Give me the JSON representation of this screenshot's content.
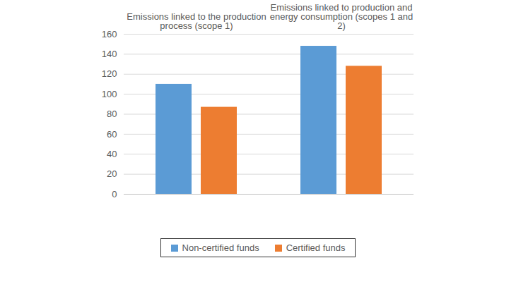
{
  "chart_data": {
    "type": "bar",
    "categories": [
      "Emissions linked to the production process (scope 1)",
      "Emissions linked to production and energy consumption (scopes 1 and 2)"
    ],
    "series": [
      {
        "name": "Non-certified funds",
        "color": "#5b9bd5",
        "values": [
          110,
          148
        ]
      },
      {
        "name": "Certified funds",
        "color": "#ed7d31",
        "values": [
          87,
          128
        ]
      }
    ],
    "ylim": [
      0,
      160
    ],
    "yticks": [
      0,
      20,
      40,
      60,
      80,
      100,
      120,
      140,
      160
    ],
    "grid": true,
    "legend": "bottom"
  }
}
